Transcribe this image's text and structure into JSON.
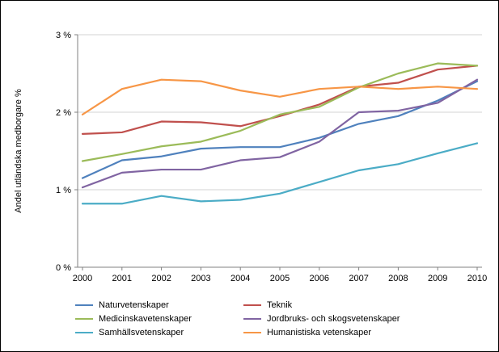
{
  "chart_data": {
    "type": "line",
    "title": "",
    "xlabel": "",
    "ylabel": "Andel utländska medborgare %",
    "ylim": [
      0,
      3
    ],
    "yticks": [
      {
        "value": 0,
        "label": "0 %"
      },
      {
        "value": 1,
        "label": "1 %"
      },
      {
        "value": 2,
        "label": "2 %"
      },
      {
        "value": 3,
        "label": "3 %"
      }
    ],
    "grid": true,
    "legend_position": "bottom",
    "x": [
      2000,
      2001,
      2002,
      2003,
      2004,
      2005,
      2006,
      2007,
      2008,
      2009,
      2010
    ],
    "series": [
      {
        "name": "Naturvetenskaper",
        "color": "#4F81BD",
        "values": [
          1.15,
          1.38,
          1.43,
          1.53,
          1.55,
          1.55,
          1.67,
          1.85,
          1.95,
          2.15,
          2.4
        ]
      },
      {
        "name": "Teknik",
        "color": "#C0504D",
        "values": [
          1.72,
          1.74,
          1.88,
          1.87,
          1.82,
          1.95,
          2.1,
          2.33,
          2.38,
          2.55,
          2.6
        ]
      },
      {
        "name": "Medicinskavetenskaper",
        "color": "#9BBB59",
        "values": [
          1.37,
          1.46,
          1.56,
          1.62,
          1.76,
          1.97,
          2.07,
          2.32,
          2.5,
          2.63,
          2.6
        ]
      },
      {
        "name": "Jordbruks- och skogsvetenskaper",
        "color": "#8064A2",
        "values": [
          1.03,
          1.22,
          1.26,
          1.26,
          1.38,
          1.42,
          1.62,
          2.0,
          2.02,
          2.12,
          2.42
        ]
      },
      {
        "name": "Samhällsvetenskaper",
        "color": "#4BACC6",
        "values": [
          0.82,
          0.82,
          0.92,
          0.85,
          0.87,
          0.95,
          1.1,
          1.25,
          1.33,
          1.47,
          1.6
        ]
      },
      {
        "name": "Humanistiska vetenskaper",
        "color": "#F79646",
        "values": [
          1.97,
          2.3,
          2.42,
          2.4,
          2.28,
          2.2,
          2.3,
          2.33,
          2.3,
          2.33,
          2.3
        ]
      }
    ],
    "colors": {
      "axis": "#808080",
      "gridline": "#D3D3D3"
    }
  }
}
